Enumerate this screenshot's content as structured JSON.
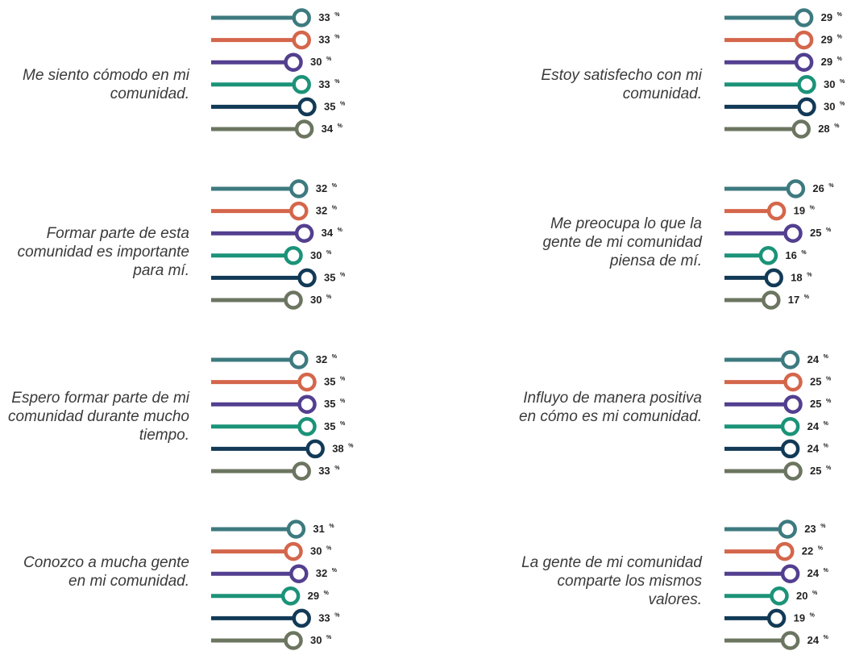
{
  "chart_data": {
    "type": "lollipop",
    "value_suffix": "%",
    "series_colors": [
      "#3d7a7f",
      "#d4664b",
      "#533f8f",
      "#1b9378",
      "#123a57",
      "#6b7560"
    ],
    "panels": [
      {
        "label": "Me siento cómodo en mi comunidad.",
        "values": [
          33,
          33,
          30,
          33,
          35,
          34
        ]
      },
      {
        "label": "Estoy satisfecho con mi comunidad.",
        "values": [
          29,
          29,
          29,
          30,
          30,
          28
        ]
      },
      {
        "label": "Formar parte de esta comunidad es importante para mí.",
        "values": [
          32,
          32,
          34,
          30,
          35,
          30
        ]
      },
      {
        "label": "Me preocupa lo que la gente de mi comunidad piensa de mí.",
        "values": [
          26,
          19,
          25,
          16,
          18,
          17
        ]
      },
      {
        "label": "Espero formar parte de mi comunidad durante mucho tiempo.",
        "values": [
          32,
          35,
          35,
          35,
          38,
          33
        ]
      },
      {
        "label": "Influyo de manera positiva en cómo es mi comunidad.",
        "values": [
          24,
          25,
          25,
          24,
          24,
          25
        ]
      },
      {
        "label": "Conozco a mucha gente en mi comunidad.",
        "values": [
          31,
          30,
          32,
          29,
          33,
          30
        ]
      },
      {
        "label": "La gente de mi comunidad comparte los mismos valores.",
        "values": [
          23,
          22,
          24,
          20,
          19,
          24
        ]
      }
    ]
  }
}
